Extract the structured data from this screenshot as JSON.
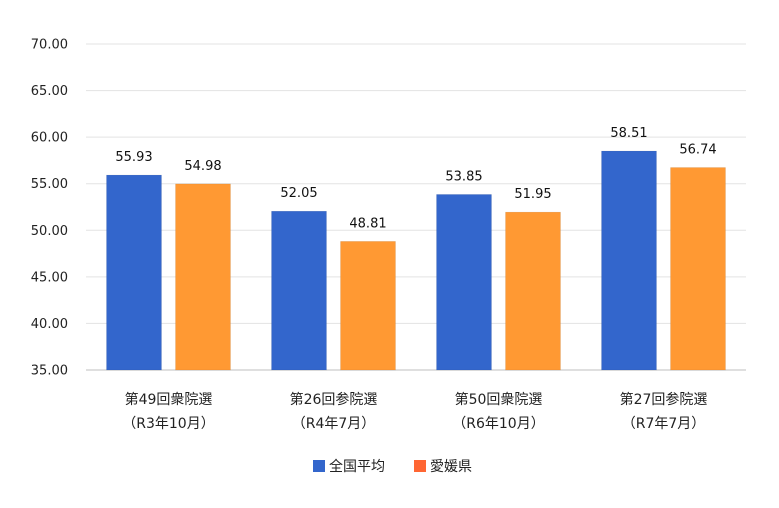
{
  "chart_data": {
    "type": "bar",
    "categories": [
      [
        "第49回衆院選",
        "（R3年10月）"
      ],
      [
        "第26回参院選",
        "（R4年7月）"
      ],
      [
        "第50回衆院選",
        "（R6年10月）"
      ],
      [
        "第27回参院選",
        "（R7年7月）"
      ]
    ],
    "series": [
      {
        "name": "全国平均",
        "values": [
          55.93,
          52.05,
          53.85,
          58.51
        ],
        "labels": [
          "55.93",
          "52.05",
          "53.85",
          "58.51"
        ],
        "color": "#3366cc"
      },
      {
        "name": "愛媛県",
        "values": [
          54.98,
          48.81,
          51.95,
          56.74
        ],
        "labels": [
          "54.98",
          "48.81",
          "51.95",
          "56.74"
        ],
        "color": "#ff9933"
      }
    ],
    "legend_colors": [
      "#3366cc",
      "#ff6633"
    ],
    "ylim": [
      35,
      70
    ],
    "yticks": [
      "35.00",
      "40.00",
      "45.00",
      "50.00",
      "55.00",
      "60.00",
      "65.00",
      "70.00"
    ],
    "grid": true,
    "legend_position": "bottom"
  }
}
